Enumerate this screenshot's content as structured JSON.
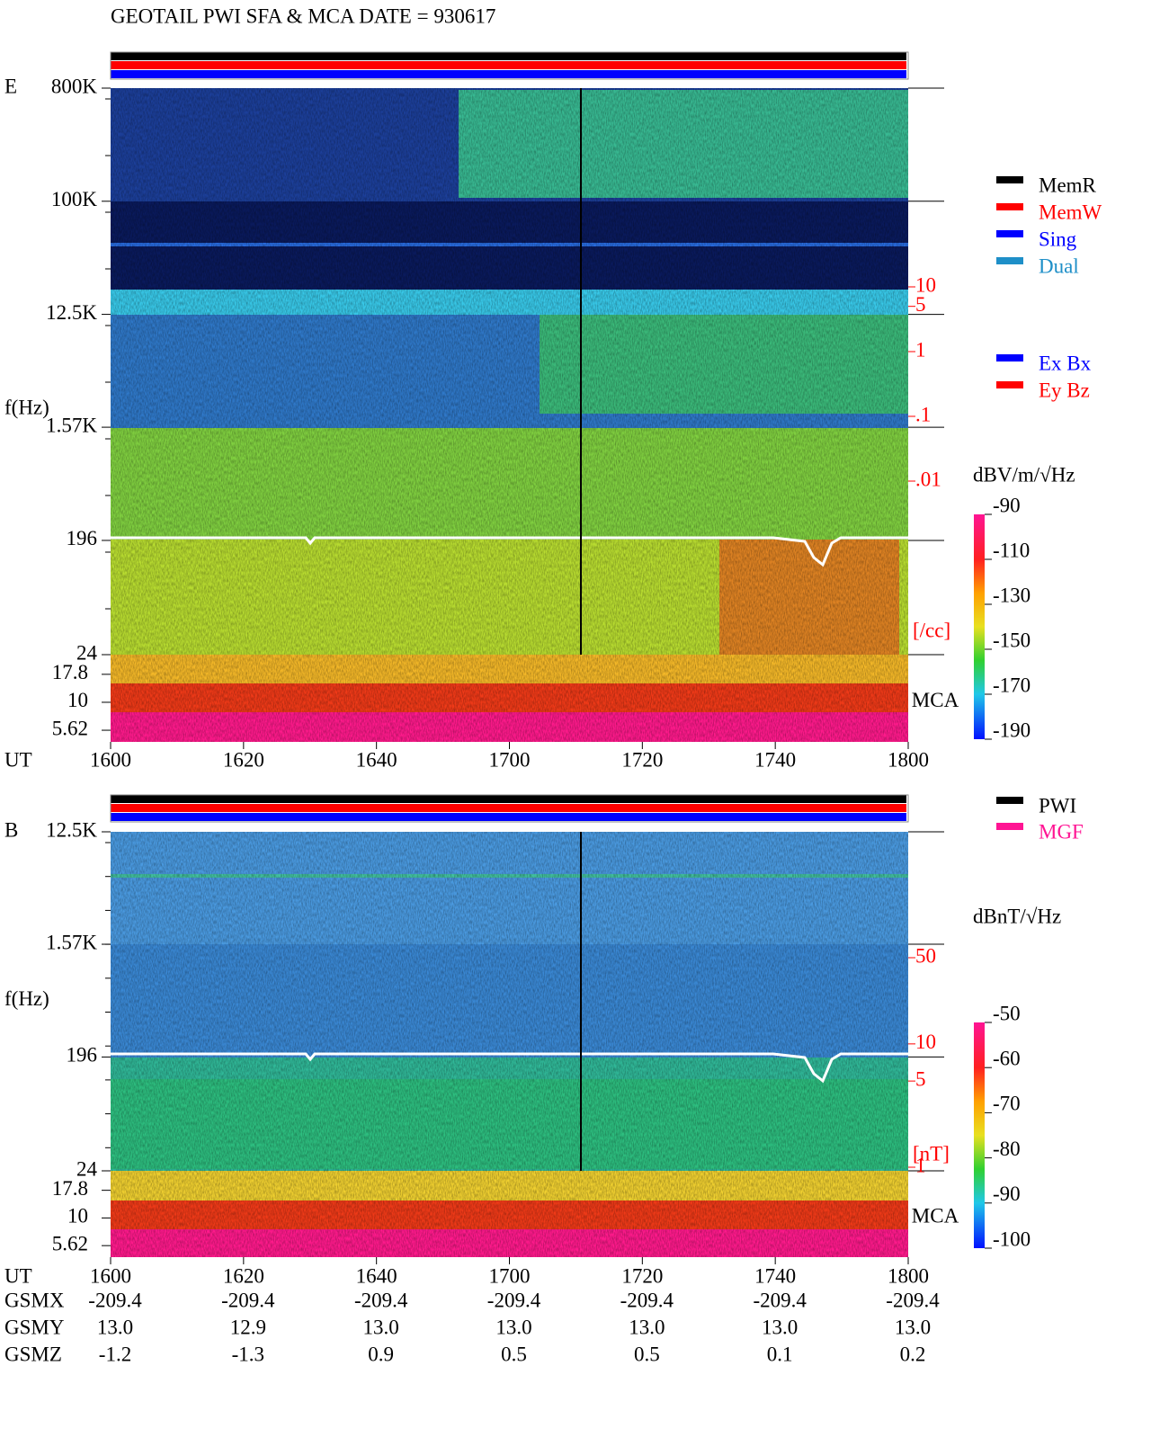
{
  "title": "GEOTAIL  PWI SFA & MCA   DATE = 930617",
  "chart_data": [
    {
      "type": "spectrogram",
      "panel_label": "E",
      "y_label": "f(Hz)",
      "x_label": "UT",
      "categories": [
        "1600",
        "1620",
        "1640",
        "1700",
        "1720",
        "1740",
        "1800"
      ],
      "log_scale": true,
      "ylim": [
        24,
        800000
      ],
      "yticks": [
        {
          "value": 800000,
          "label": "800K"
        },
        {
          "value": 100000,
          "label": "100K"
        },
        {
          "value": 12500,
          "label": "12.5K"
        },
        {
          "value": 1570,
          "label": "1.57K"
        },
        196,
        24
      ],
      "mca_label": "MCA",
      "mca_ylim": [
        4.42,
        26.7
      ],
      "mca_ticks": [
        17.8,
        10,
        5.62
      ],
      "y2lim": [
        0.01,
        10
      ],
      "y2ticks": [
        10,
        5,
        1,
        {
          "value": 0.1,
          "label": ".1"
        },
        {
          "value": 0.01,
          "label": ".01"
        }
      ],
      "y2_label": "[/cc]",
      "colorbar_label": "dBV/m/√Hz",
      "colorbar_lim": [
        -190,
        -90
      ],
      "colorbar_ticks": [
        -90,
        -110,
        -130,
        -150,
        -170,
        -190
      ],
      "status_legend": [
        {
          "name": "MemR",
          "color": "#000000"
        },
        {
          "name": "MemW",
          "color": "#ff0000"
        },
        {
          "name": "Sing",
          "color": "#0000ff"
        },
        {
          "name": "Dual",
          "color": "#1e8fc8"
        }
      ],
      "component_legend": [
        {
          "name": "Ex Bx",
          "color": "#0000ff"
        },
        {
          "name": "Ey Bz",
          "color": "#ff0000"
        }
      ]
    },
    {
      "type": "spectrogram",
      "panel_label": "B",
      "y_label": "f(Hz)",
      "x_label": "UT",
      "categories": [
        "1600",
        "1620",
        "1640",
        "1700",
        "1720",
        "1740",
        "1800"
      ],
      "log_scale": true,
      "ylim": [
        24,
        12500
      ],
      "yticks": [
        {
          "value": 12500,
          "label": "12.5K"
        },
        {
          "value": 1570,
          "label": "1.57K"
        },
        196,
        24
      ],
      "mca_label": "MCA",
      "mca_ylim": [
        4.42,
        26.7
      ],
      "mca_ticks": [
        17.8,
        10,
        5.62
      ],
      "y2lim": [
        1,
        50
      ],
      "y2ticks": [
        50,
        10,
        5,
        1
      ],
      "y2_label": "[nT]",
      "colorbar_label": "dBnT/√Hz",
      "colorbar_lim": [
        -100,
        -50
      ],
      "colorbar_ticks": [
        -50,
        -60,
        -70,
        -80,
        -90,
        -100
      ],
      "status_legend": [
        {
          "name": "PWI",
          "color": "#000000"
        },
        {
          "name": "MGF",
          "color": "#ff1493"
        }
      ]
    }
  ],
  "orbit": {
    "rows": [
      {
        "name": "GSMX",
        "values": [
          "-209.4",
          "-209.4",
          "-209.4",
          "-209.4",
          "-209.4",
          "-209.4",
          "-209.4"
        ]
      },
      {
        "name": "GSMY",
        "values": [
          "13.0",
          "12.9",
          "13.0",
          "13.0",
          "13.0",
          "13.0",
          "13.0"
        ]
      },
      {
        "name": "GSMZ",
        "values": [
          "-1.2",
          "-1.3",
          "0.9",
          "0.5",
          "0.5",
          "0.1",
          "0.2"
        ]
      }
    ]
  }
}
